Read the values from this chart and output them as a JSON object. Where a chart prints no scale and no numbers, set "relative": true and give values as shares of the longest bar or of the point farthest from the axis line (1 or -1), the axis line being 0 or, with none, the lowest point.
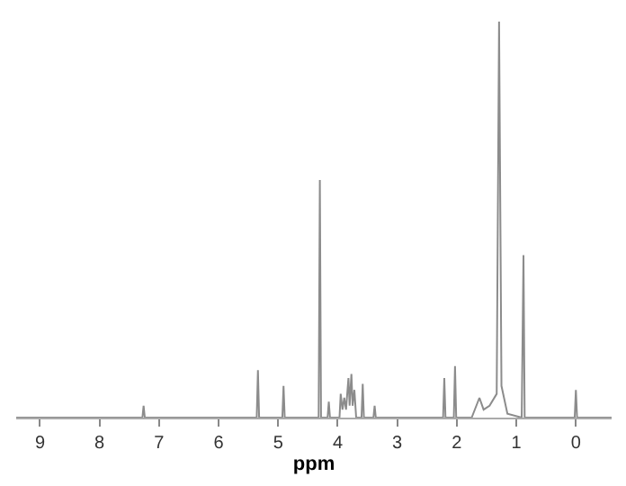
{
  "chart_data": {
    "type": "line",
    "xlabel": "ppm",
    "relative": true,
    "color": "#8c8c8c",
    "x": [
      9.4,
      7.28,
      7.26,
      7.24,
      5.36,
      5.34,
      5.32,
      4.93,
      4.91,
      4.89,
      4.32,
      4.3,
      4.28,
      4.17,
      4.15,
      4.13,
      3.97,
      3.95,
      3.92,
      3.89,
      3.86,
      3.82,
      3.8,
      3.77,
      3.75,
      3.72,
      3.69,
      3.6,
      3.58,
      3.56,
      3.4,
      3.38,
      3.36,
      2.23,
      2.21,
      2.19,
      2.05,
      2.03,
      2.01,
      1.75,
      1.62,
      1.55,
      1.45,
      1.33,
      1.29,
      1.25,
      1.15,
      0.91,
      0.88,
      0.86,
      0.02,
      0.0,
      -0.02,
      -0.6
    ],
    "values": [
      0,
      0,
      0.03,
      0,
      0,
      0.12,
      0,
      0,
      0.08,
      0,
      0,
      0.6,
      0,
      0,
      0.04,
      0,
      0,
      0.06,
      0.02,
      0.05,
      0.02,
      0.1,
      0.03,
      0.11,
      0.03,
      0.07,
      0,
      0,
      0.085,
      0,
      0,
      0.03,
      0,
      0,
      0.1,
      0,
      0,
      0.13,
      0,
      0,
      0.05,
      0.02,
      0.03,
      0.06,
      1.0,
      0.08,
      0.01,
      0,
      0.41,
      0,
      0,
      0.07,
      0,
      0
    ],
    "xlim": [
      9.4,
      -0.6
    ],
    "xticks": [
      9,
      8,
      7,
      6,
      5,
      4,
      3,
      2,
      1,
      0
    ]
  }
}
